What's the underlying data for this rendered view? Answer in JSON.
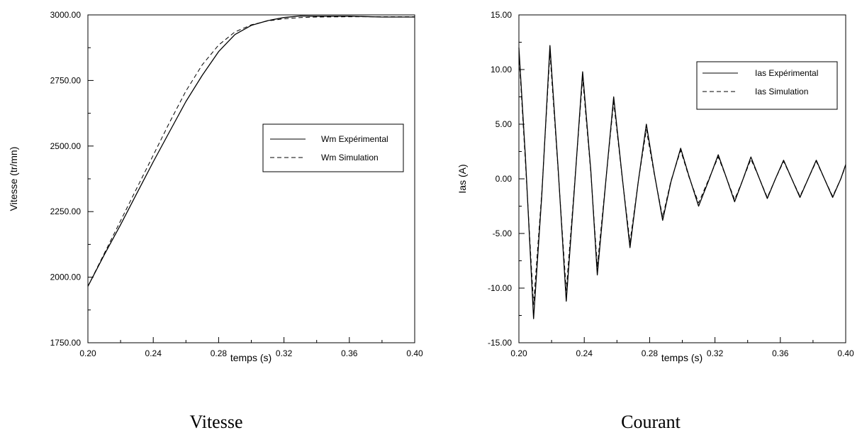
{
  "chart_data": [
    {
      "type": "line",
      "caption": "Vitesse",
      "xlabel": "temps (s)",
      "ylabel": "Vitesse (tr/mn)",
      "xlim": [
        0.2,
        0.4
      ],
      "ylim": [
        1750,
        3000
      ],
      "xticks": [
        "0.20",
        "0.24",
        "0.28",
        "0.32",
        "0.36",
        "0.40"
      ],
      "yticks": [
        "1750.00",
        "2000.00",
        "2250.00",
        "2500.00",
        "2750.00",
        "3000.00"
      ],
      "legend_position": "right-middle",
      "series": [
        {
          "name": "Wm Expérimental",
          "style": "solid",
          "x": [
            0.2,
            0.21,
            0.22,
            0.23,
            0.24,
            0.25,
            0.26,
            0.27,
            0.28,
            0.29,
            0.3,
            0.31,
            0.32,
            0.33,
            0.34,
            0.36,
            0.38,
            0.4
          ],
          "y": [
            1965,
            2085,
            2200,
            2320,
            2440,
            2555,
            2670,
            2770,
            2860,
            2925,
            2960,
            2978,
            2990,
            2996,
            2995,
            2995,
            2992,
            2992
          ]
        },
        {
          "name": "Wm Simulation",
          "style": "dashed",
          "x": [
            0.2,
            0.21,
            0.22,
            0.23,
            0.24,
            0.25,
            0.26,
            0.27,
            0.28,
            0.29,
            0.3,
            0.31,
            0.32,
            0.33,
            0.34,
            0.36,
            0.38,
            0.4
          ],
          "y": [
            1965,
            2090,
            2215,
            2340,
            2465,
            2590,
            2710,
            2810,
            2885,
            2935,
            2962,
            2977,
            2985,
            2990,
            2992,
            2993,
            2993,
            2993
          ]
        }
      ]
    },
    {
      "type": "line",
      "caption": "Courant",
      "xlabel": "temps (s)",
      "ylabel": "Ias (A)",
      "xlim": [
        0.2,
        0.4
      ],
      "ylim": [
        -15,
        15
      ],
      "xticks": [
        "0.20",
        "0.24",
        "0.28",
        "0.32",
        "0.36",
        "0.40"
      ],
      "yticks": [
        "-15.00",
        "-10.00",
        "-5.00",
        "0.00",
        "5.00",
        "10.00",
        "15.00"
      ],
      "legend_position": "top-right",
      "series": [
        {
          "name": "Ias Expérimental",
          "style": "solid",
          "x": [
            0.2,
            0.204,
            0.209,
            0.214,
            0.219,
            0.224,
            0.229,
            0.234,
            0.239,
            0.244,
            0.248,
            0.253,
            0.258,
            0.263,
            0.268,
            0.273,
            0.278,
            0.283,
            0.288,
            0.293,
            0.299,
            0.304,
            0.31,
            0.316,
            0.322,
            0.327,
            0.332,
            0.337,
            0.342,
            0.347,
            0.352,
            0.357,
            0.362,
            0.367,
            0.372,
            0.377,
            0.382,
            0.387,
            0.392,
            0.397,
            0.4
          ],
          "y": [
            12.0,
            2.0,
            -12.8,
            -1.5,
            12.2,
            1.0,
            -11.2,
            -0.8,
            9.8,
            0.8,
            -8.8,
            -0.5,
            7.5,
            0.5,
            -6.3,
            -0.3,
            5.0,
            0.4,
            -3.8,
            -0.3,
            2.8,
            0.3,
            -2.5,
            -0.2,
            2.2,
            0.1,
            -2.1,
            -0.1,
            2.0,
            0.1,
            -1.8,
            0.0,
            1.7,
            0.0,
            -1.7,
            0.0,
            1.7,
            0.0,
            -1.7,
            0.0,
            1.3
          ]
        },
        {
          "name": "Ias Simulation",
          "style": "dashed",
          "x": [
            0.2,
            0.204,
            0.209,
            0.214,
            0.219,
            0.224,
            0.229,
            0.234,
            0.239,
            0.244,
            0.248,
            0.253,
            0.258,
            0.263,
            0.268,
            0.273,
            0.278,
            0.283,
            0.288,
            0.293,
            0.299,
            0.304,
            0.31,
            0.316,
            0.322,
            0.327,
            0.332,
            0.337,
            0.342,
            0.347,
            0.352,
            0.357,
            0.362,
            0.367,
            0.372,
            0.377,
            0.382,
            0.387,
            0.392,
            0.397,
            0.4
          ],
          "y": [
            11.5,
            1.5,
            -11.5,
            -1.2,
            11.5,
            0.8,
            -10.2,
            -0.6,
            9.2,
            0.6,
            -8.0,
            -0.4,
            7.0,
            0.4,
            -5.8,
            -0.3,
            4.5,
            0.3,
            -3.5,
            -0.2,
            2.6,
            0.2,
            -2.2,
            -0.1,
            2.0,
            0.1,
            -1.9,
            -0.1,
            1.8,
            0.1,
            -1.7,
            0.0,
            1.6,
            0.0,
            -1.6,
            0.0,
            1.6,
            0.0,
            -1.6,
            0.0,
            1.2
          ]
        }
      ]
    }
  ]
}
